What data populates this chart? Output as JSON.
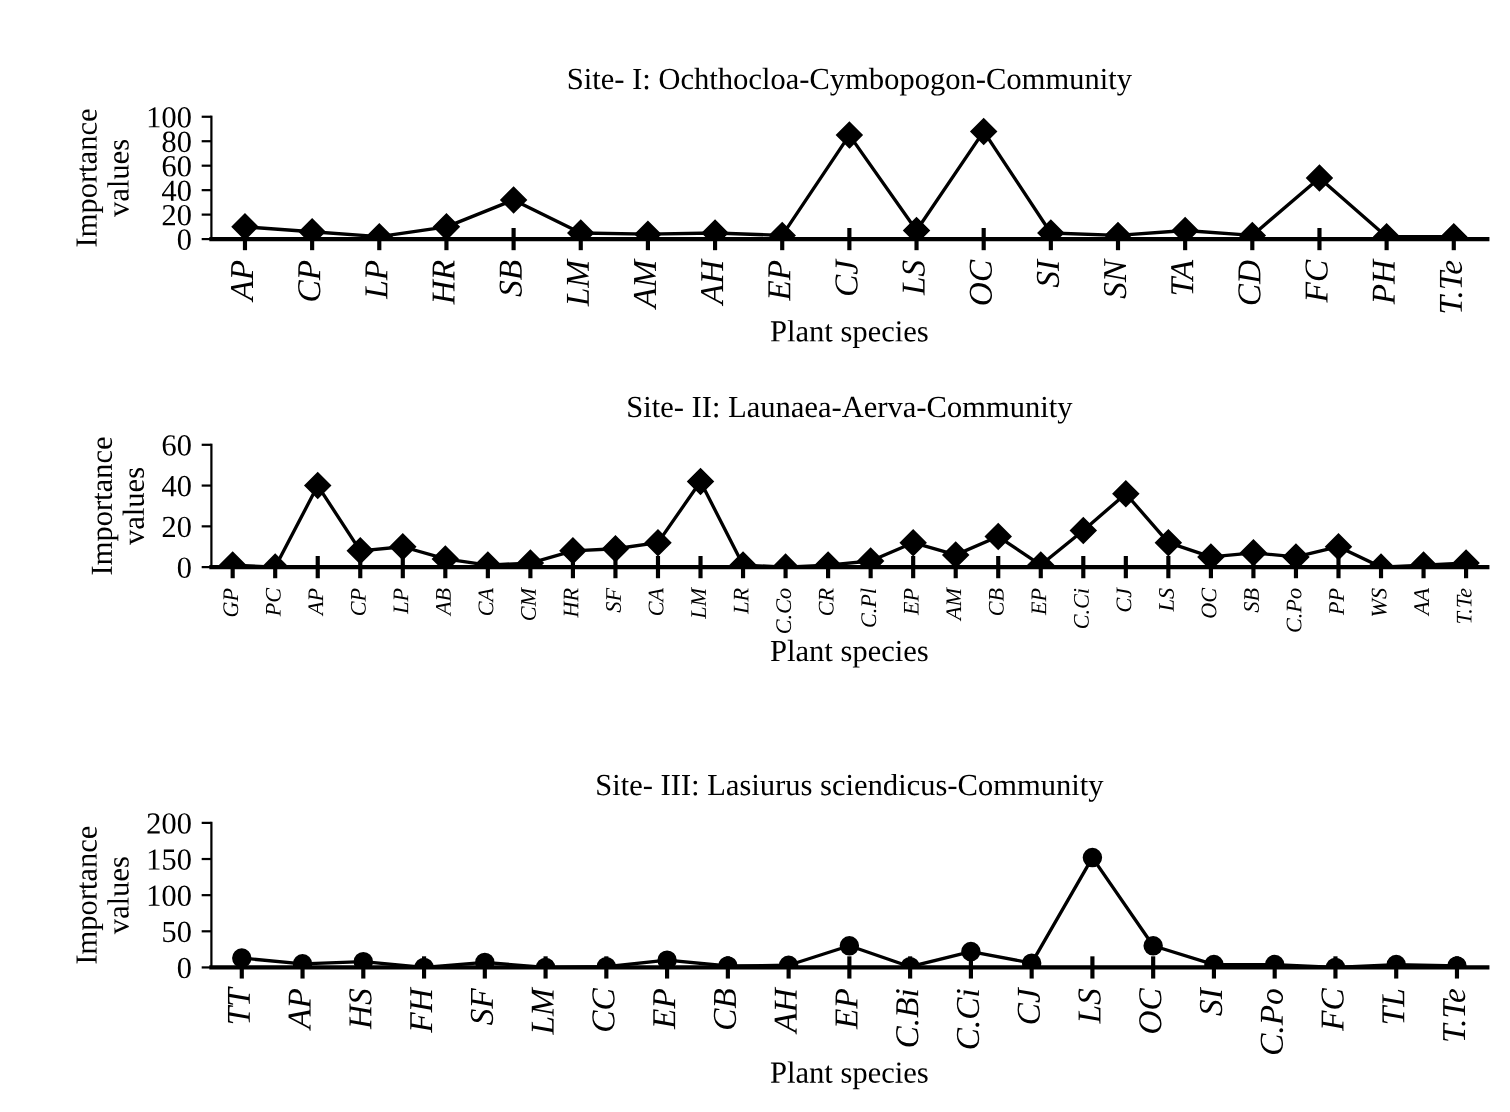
{
  "chart_data": [
    {
      "type": "line",
      "title": "Site- I: Ochthocloa-Cymbopogon-Community",
      "xlabel": "Plant species",
      "ylabel": "Importance\nvalues",
      "marker": "diamond",
      "categories": [
        "AP",
        "CP",
        "LP",
        "HR",
        "SB",
        "LM",
        "AM",
        "AH",
        "EP",
        "CJ",
        "LS",
        "OC",
        "SI",
        "SN",
        "TA",
        "CD",
        "FC",
        "PH",
        "T.Te"
      ],
      "series": [
        {
          "color": "#000000",
          "values": [
            10,
            6,
            2,
            10,
            32,
            5,
            4,
            5,
            3,
            85,
            7,
            88,
            5,
            3,
            7,
            3,
            50,
            2,
            2
          ]
        }
      ],
      "ylim": [
        0,
        100
      ],
      "yticks": [
        0,
        20,
        40,
        60,
        80,
        100
      ]
    },
    {
      "type": "line",
      "title": "Site- II: Launaea-Aerva-Community",
      "xlabel": "Plant species",
      "ylabel": "Importance\nvalues",
      "marker": "diamond",
      "categories": [
        "GP",
        "PC",
        "AP",
        "CP",
        "LP",
        "AB",
        "CA",
        "CM",
        "HR",
        "SF",
        "CA",
        "LM",
        "LR",
        "C.Co",
        "CR",
        "C.Pl",
        "EP",
        "AM",
        "CB",
        "EP",
        "C.Ci",
        "CJ",
        "LS",
        "OC",
        "SB",
        "C.Po",
        "PP",
        "WS",
        "AA",
        "T.Te"
      ],
      "series": [
        {
          "color": "#000000",
          "values": [
            1,
            0,
            40,
            8,
            10,
            4,
            1,
            2,
            8,
            9,
            12,
            42,
            1,
            0,
            1,
            3,
            12,
            6,
            15,
            1,
            18,
            36,
            12,
            5,
            7,
            5,
            10,
            0,
            1,
            2
          ]
        }
      ],
      "ylim": [
        0,
        60
      ],
      "yticks": [
        0,
        20,
        40,
        60
      ]
    },
    {
      "type": "line",
      "title": "Site- III: Lasiurus sciendicus-Community",
      "xlabel": "Plant species",
      "ylabel": "Importance\nvalues",
      "marker": "circle",
      "categories": [
        "TT",
        "AP",
        "HS",
        "FH",
        "SF",
        "LM",
        "CC",
        "EP",
        "CB",
        "AH",
        "EP",
        "C.Bi",
        "C.Ci",
        "CJ",
        "LS",
        "OC",
        "SI",
        "C.Po",
        "FC",
        "TL",
        "T.Te"
      ],
      "series": [
        {
          "color": "#000000",
          "values": [
            13,
            5,
            8,
            0,
            7,
            0,
            1,
            10,
            2,
            3,
            30,
            1,
            22,
            6,
            152,
            30,
            4,
            4,
            0,
            4,
            2
          ]
        }
      ],
      "ylim": [
        0,
        200
      ],
      "yticks": [
        0,
        50,
        100,
        150,
        200
      ]
    }
  ]
}
